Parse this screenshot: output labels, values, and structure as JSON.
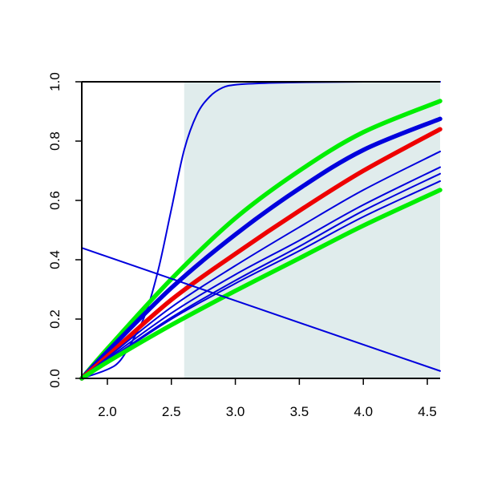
{
  "chart_data": {
    "type": "line",
    "title": "",
    "xlabel": "",
    "ylabel": "",
    "xlim": [
      1.8,
      4.6
    ],
    "ylim": [
      0.0,
      1.0
    ],
    "grid": false,
    "x_ticks": [
      2.0,
      2.5,
      3.0,
      3.5,
      4.0,
      4.5
    ],
    "x_tick_labels": [
      "2.0",
      "2.5",
      "3.0",
      "3.5",
      "4.0",
      "4.5"
    ],
    "y_ticks": [
      0.0,
      0.2,
      0.4,
      0.6,
      0.8,
      1.0
    ],
    "y_tick_labels": [
      "0.0",
      "0.2",
      "0.4",
      "0.6",
      "0.8",
      "1.0"
    ],
    "shaded_region": {
      "x_from": 2.6,
      "x_to": 4.6,
      "color": "#e0ecec"
    },
    "series": [
      {
        "color": "#0000dd",
        "weight": "thin",
        "x": [
          1.8,
          2.0,
          2.1,
          2.2,
          2.3,
          2.4,
          2.5,
          2.6,
          2.7,
          2.8,
          2.9,
          3.0,
          3.2,
          3.5,
          4.0,
          4.6
        ],
        "y": [
          0.0,
          0.03,
          0.06,
          0.13,
          0.22,
          0.37,
          0.57,
          0.77,
          0.89,
          0.95,
          0.98,
          0.99,
          0.995,
          0.998,
          1.0,
          1.0
        ]
      },
      {
        "color": "#00ee00",
        "weight": "thick",
        "x": [
          1.8,
          2.0,
          2.5,
          3.0,
          3.5,
          4.0,
          4.6
        ],
        "y": [
          0.0,
          0.1,
          0.335,
          0.54,
          0.7,
          0.83,
          0.935
        ]
      },
      {
        "color": "#0000dd",
        "weight": "thick",
        "x": [
          1.8,
          2.0,
          2.5,
          3.0,
          3.5,
          4.0,
          4.6
        ],
        "y": [
          0.0,
          0.09,
          0.305,
          0.485,
          0.64,
          0.77,
          0.875
        ]
      },
      {
        "color": "#ee0000",
        "weight": "thick",
        "x": [
          1.8,
          2.0,
          2.5,
          3.0,
          3.5,
          4.0,
          4.6
        ],
        "y": [
          0.0,
          0.075,
          0.265,
          0.42,
          0.565,
          0.7,
          0.84
        ]
      },
      {
        "color": "#0000dd",
        "weight": "thin",
        "x": [
          1.8,
          2.0,
          2.5,
          3.0,
          3.5,
          4.0,
          4.6
        ],
        "y": [
          0.0,
          0.07,
          0.24,
          0.38,
          0.51,
          0.635,
          0.765
        ]
      },
      {
        "color": "#0000dd",
        "weight": "thin",
        "x": [
          1.8,
          2.0,
          2.5,
          3.0,
          3.5,
          4.0,
          4.6
        ],
        "y": [
          0.0,
          0.065,
          0.22,
          0.35,
          0.465,
          0.585,
          0.712
        ]
      },
      {
        "color": "#0000dd",
        "weight": "thin",
        "x": [
          1.8,
          2.0,
          2.5,
          3.0,
          3.5,
          4.0,
          4.6
        ],
        "y": [
          0.0,
          0.06,
          0.205,
          0.33,
          0.445,
          0.565,
          0.69
        ]
      },
      {
        "color": "#0000dd",
        "weight": "thin",
        "x": [
          1.8,
          2.0,
          2.5,
          3.0,
          3.5,
          4.0,
          4.6
        ],
        "y": [
          0.0,
          0.058,
          0.2,
          0.32,
          0.43,
          0.545,
          0.665
        ]
      },
      {
        "color": "#00ee00",
        "weight": "thick",
        "x": [
          1.8,
          2.0,
          2.5,
          3.0,
          3.5,
          4.0,
          4.6
        ],
        "y": [
          0.0,
          0.055,
          0.18,
          0.295,
          0.405,
          0.515,
          0.635
        ]
      },
      {
        "color": "#0000dd",
        "weight": "thin",
        "x": [
          1.8,
          4.6
        ],
        "y": [
          0.44,
          0.025
        ]
      }
    ]
  }
}
